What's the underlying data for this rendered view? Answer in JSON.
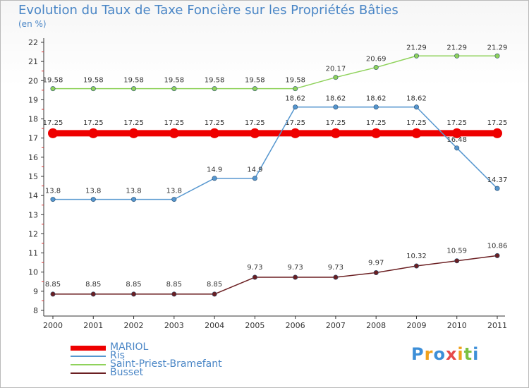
{
  "header": {
    "title": "Evolution du Taux de Taxe Foncière sur les Propriétés Bâties",
    "subtitle": "(en %)"
  },
  "logo": {
    "text": "Proxiti",
    "letters": [
      {
        "ch": "P",
        "color": "#3d8fd8"
      },
      {
        "ch": "r",
        "color": "#f0a11b"
      },
      {
        "ch": "o",
        "color": "#3d8fd8"
      },
      {
        "ch": "x",
        "color": "#e64a4a"
      },
      {
        "ch": "i",
        "color": "#f0a11b"
      },
      {
        "ch": "t",
        "color": "#7cc142"
      },
      {
        "ch": "i",
        "color": "#3d8fd8"
      }
    ]
  },
  "chart_data": {
    "type": "line",
    "title": "Evolution du Taux de Taxe Foncière sur les Propriétés Bâties",
    "ylabel": "(en %)",
    "xlabel": "",
    "x": [
      "2000",
      "2001",
      "2002",
      "2003",
      "2004",
      "2005",
      "2006",
      "2007",
      "2008",
      "2009",
      "2010",
      "2011"
    ],
    "ylim": [
      8,
      22
    ],
    "yticks": [
      8,
      9,
      10,
      11,
      12,
      13,
      14,
      15,
      16,
      17,
      18,
      19,
      20,
      21,
      22
    ],
    "grid": false,
    "legend_position": "bottom-left",
    "series": [
      {
        "name": "MARIOL",
        "color": "#ee0000",
        "values": [
          17.25,
          17.25,
          17.25,
          17.25,
          17.25,
          17.25,
          17.25,
          17.25,
          17.25,
          17.25,
          17.25,
          17.25
        ],
        "labels": [
          "17.25",
          "17.25",
          "17.25",
          "17.25",
          "17.25",
          "17.25",
          "17.25",
          "17.25",
          "17.25",
          "17.25",
          "17.25",
          "17.25"
        ]
      },
      {
        "name": "Ris",
        "color": "#5596cf",
        "values": [
          13.8,
          13.8,
          13.8,
          13.8,
          14.9,
          14.9,
          18.62,
          18.62,
          18.62,
          18.62,
          16.48,
          14.37
        ],
        "labels": [
          "13.8",
          "13.8",
          "13.8",
          "13.8",
          "14.9",
          "14.9",
          "18.62",
          "18.62",
          "18.62",
          "18.62",
          "16.48",
          "14.37"
        ]
      },
      {
        "name": "Saint-Priest-Bramefant",
        "color": "#8fd25b",
        "values": [
          19.58,
          19.58,
          19.58,
          19.58,
          19.58,
          19.58,
          19.58,
          20.17,
          20.69,
          21.29,
          21.29,
          21.29
        ],
        "labels": [
          "19.58",
          "19.58",
          "19.58",
          "19.58",
          "19.58",
          "19.58",
          "19.58",
          "20.17",
          "20.69",
          "21.29",
          "21.29",
          "21.29"
        ]
      },
      {
        "name": "Busset",
        "color": "#6b1f22",
        "values": [
          8.85,
          8.85,
          8.85,
          8.85,
          8.85,
          9.73,
          9.73,
          9.73,
          9.97,
          10.32,
          10.59,
          10.86
        ],
        "labels": [
          "8.85",
          "8.85",
          "8.85",
          "8.85",
          "8.85",
          "9.73",
          "9.73",
          "9.73",
          "9.97",
          "10.32",
          "10.59",
          "10.86"
        ]
      }
    ]
  }
}
